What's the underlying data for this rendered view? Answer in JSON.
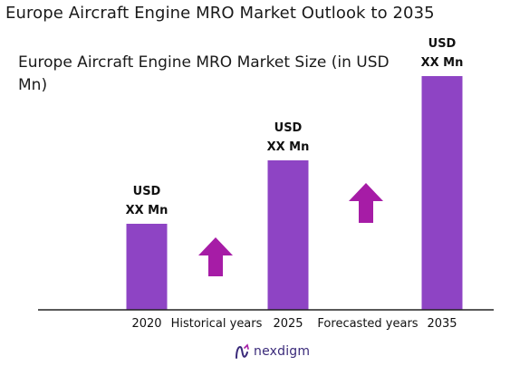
{
  "page_title": "Europe Aircraft Engine MRO Market Outlook to 2035",
  "logo_text": "nexdigm",
  "colors": {
    "bar": "#8e44c4",
    "arrow": "#a61ca6",
    "axis": "#222222",
    "logo": "#3a2a7a"
  },
  "chart_data": {
    "type": "bar",
    "title": "Europe Aircraft Engine MRO Market Size (in USD Mn)",
    "categories": [
      "2020",
      "2025",
      "2035"
    ],
    "values": [
      95,
      165,
      258
    ],
    "value_labels": [
      [
        "USD",
        "XX Mn"
      ],
      [
        "USD",
        "XX Mn"
      ],
      [
        "USD",
        "XX Mn"
      ]
    ],
    "period_labels": [
      "Historical years",
      "Forecasted years"
    ],
    "xlabel": "",
    "ylabel": "",
    "grid": false,
    "legend": "none"
  }
}
